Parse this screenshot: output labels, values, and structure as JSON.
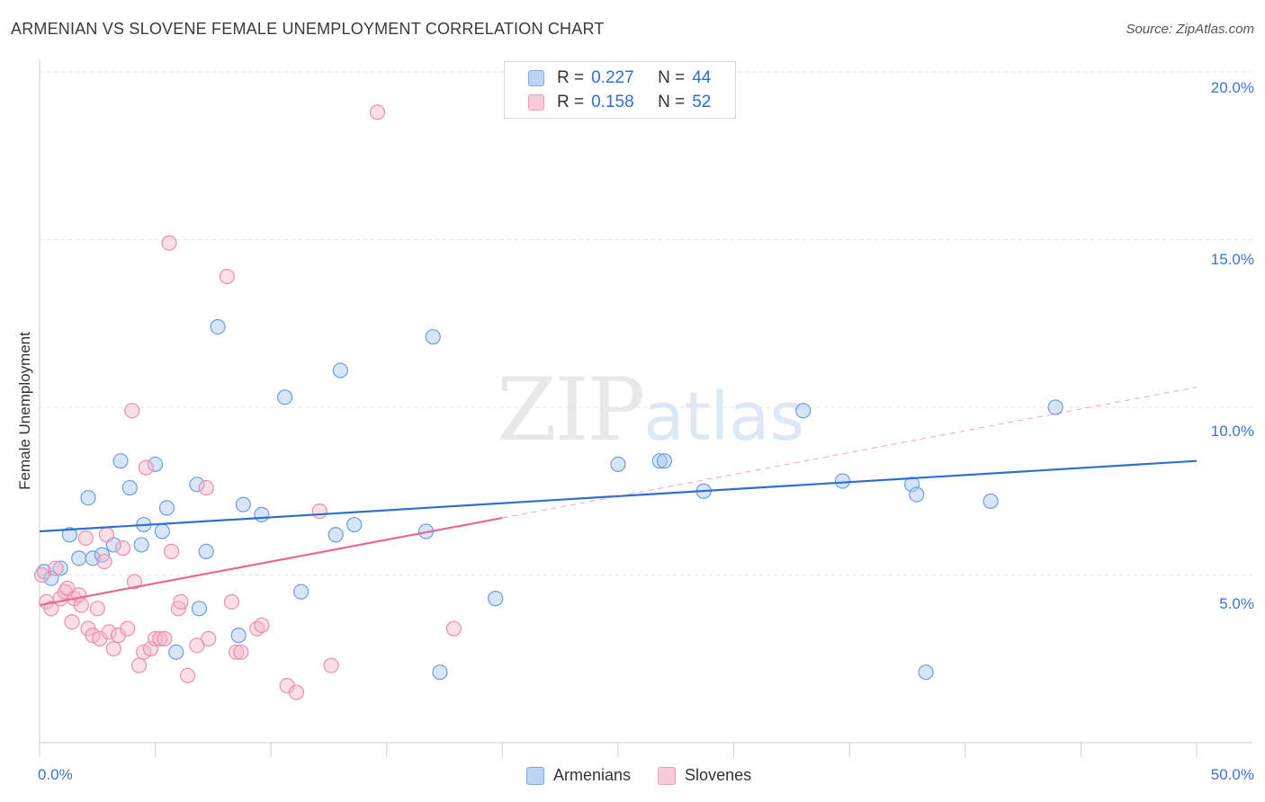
{
  "title": "ARMENIAN VS SLOVENE FEMALE UNEMPLOYMENT CORRELATION CHART",
  "source": "Source: ZipAtlas.com",
  "watermark": {
    "zip": "ZIP",
    "atlas": "atlas"
  },
  "legend": {
    "rows": [
      {
        "r_label": "R =",
        "r_value": "0.227",
        "n_label": "N =",
        "n_value": "44",
        "color": "#a9c6ef"
      },
      {
        "r_label": "R =",
        "r_value": "0.158",
        "n_label": "N =",
        "n_value": "52",
        "color": "#f6b6c8"
      }
    ]
  },
  "bottom_legend": [
    "Armenians",
    "Slovenes"
  ],
  "colors": {
    "armenians_fill": "#a9c6ef",
    "armenians_stroke": "#6d9ee0",
    "armenians_line": "#2f6fcf",
    "slovenes_fill": "#f6b6c8",
    "slovenes_stroke": "#ec8fab",
    "slovenes_line": "#e56a93",
    "tick_text": "#3d74c9",
    "grid": "#e3e3e3"
  },
  "chart_data": {
    "type": "scatter",
    "title": "ARMENIAN VS SLOVENE FEMALE UNEMPLOYMENT CORRELATION CHART",
    "xlabel": "",
    "ylabel": "Female Unemployment",
    "xlim": [
      0,
      50
    ],
    "ylim": [
      0,
      20
    ],
    "x_tick_labels": [
      "0.0%",
      "50.0%"
    ],
    "y_ticks": [
      5,
      10,
      15,
      20
    ],
    "y_tick_labels": [
      "5.0%",
      "10.0%",
      "15.0%",
      "20.0%"
    ],
    "grid": true,
    "legend_position": "top-center",
    "series": [
      {
        "name": "Armenians",
        "r": 0.227,
        "n": 44,
        "trend": {
          "x": [
            0,
            50
          ],
          "y": [
            6.3,
            8.4
          ],
          "solid_to_x": 50
        },
        "points": [
          [
            0.2,
            5.1
          ],
          [
            0.5,
            4.9
          ],
          [
            0.9,
            5.2
          ],
          [
            1.3,
            6.2
          ],
          [
            1.7,
            5.5
          ],
          [
            2.1,
            7.3
          ],
          [
            2.3,
            5.5
          ],
          [
            2.7,
            5.6
          ],
          [
            3.2,
            5.9
          ],
          [
            3.5,
            8.4
          ],
          [
            3.9,
            7.6
          ],
          [
            4.4,
            5.9
          ],
          [
            4.5,
            6.5
          ],
          [
            5.0,
            8.3
          ],
          [
            5.3,
            6.3
          ],
          [
            5.5,
            7.0
          ],
          [
            5.9,
            2.7
          ],
          [
            6.8,
            7.7
          ],
          [
            6.9,
            4.0
          ],
          [
            7.2,
            5.7
          ],
          [
            7.7,
            12.4
          ],
          [
            8.6,
            3.2
          ],
          [
            8.8,
            7.1
          ],
          [
            9.6,
            6.8
          ],
          [
            10.6,
            10.3
          ],
          [
            11.3,
            4.5
          ],
          [
            12.8,
            6.2
          ],
          [
            13.0,
            11.1
          ],
          [
            13.6,
            6.5
          ],
          [
            16.7,
            6.3
          ],
          [
            17.0,
            12.1
          ],
          [
            17.3,
            2.1
          ],
          [
            19.7,
            4.3
          ],
          [
            25.0,
            8.3
          ],
          [
            26.8,
            8.4
          ],
          [
            27.0,
            8.4
          ],
          [
            28.7,
            7.5
          ],
          [
            33.0,
            9.9
          ],
          [
            34.7,
            7.8
          ],
          [
            37.7,
            7.7
          ],
          [
            37.9,
            7.4
          ],
          [
            38.3,
            2.1
          ],
          [
            41.1,
            7.2
          ],
          [
            43.9,
            10.0
          ]
        ]
      },
      {
        "name": "Slovenes",
        "r": 0.158,
        "n": 52,
        "trend": {
          "x": [
            0,
            50
          ],
          "y": [
            4.1,
            10.6
          ],
          "solid_to_x": 20
        },
        "points": [
          [
            0.1,
            5.0
          ],
          [
            0.3,
            4.2
          ],
          [
            0.5,
            4.0
          ],
          [
            0.7,
            5.2
          ],
          [
            0.9,
            4.3
          ],
          [
            1.1,
            4.5
          ],
          [
            1.2,
            4.6
          ],
          [
            1.4,
            3.6
          ],
          [
            1.5,
            4.3
          ],
          [
            1.7,
            4.4
          ],
          [
            1.8,
            4.1
          ],
          [
            2.0,
            6.1
          ],
          [
            2.1,
            3.4
          ],
          [
            2.3,
            3.2
          ],
          [
            2.5,
            4.0
          ],
          [
            2.6,
            3.1
          ],
          [
            2.8,
            5.4
          ],
          [
            2.9,
            6.2
          ],
          [
            3.0,
            3.3
          ],
          [
            3.2,
            2.8
          ],
          [
            3.4,
            3.2
          ],
          [
            3.6,
            5.8
          ],
          [
            3.8,
            3.4
          ],
          [
            4.0,
            9.9
          ],
          [
            4.1,
            4.8
          ],
          [
            4.3,
            2.3
          ],
          [
            4.5,
            2.7
          ],
          [
            4.6,
            8.2
          ],
          [
            4.8,
            2.8
          ],
          [
            5.0,
            3.1
          ],
          [
            5.2,
            3.1
          ],
          [
            5.4,
            3.1
          ],
          [
            5.6,
            14.9
          ],
          [
            5.7,
            5.7
          ],
          [
            6.0,
            4.0
          ],
          [
            6.1,
            4.2
          ],
          [
            6.4,
            2.0
          ],
          [
            6.8,
            2.9
          ],
          [
            7.2,
            7.6
          ],
          [
            7.3,
            3.1
          ],
          [
            8.1,
            13.9
          ],
          [
            8.3,
            4.2
          ],
          [
            8.5,
            2.7
          ],
          [
            8.7,
            2.7
          ],
          [
            9.4,
            3.4
          ],
          [
            9.6,
            3.5
          ],
          [
            10.7,
            1.7
          ],
          [
            11.1,
            1.5
          ],
          [
            12.1,
            6.9
          ],
          [
            12.6,
            2.3
          ],
          [
            14.6,
            18.8
          ],
          [
            17.9,
            3.4
          ]
        ]
      }
    ]
  }
}
